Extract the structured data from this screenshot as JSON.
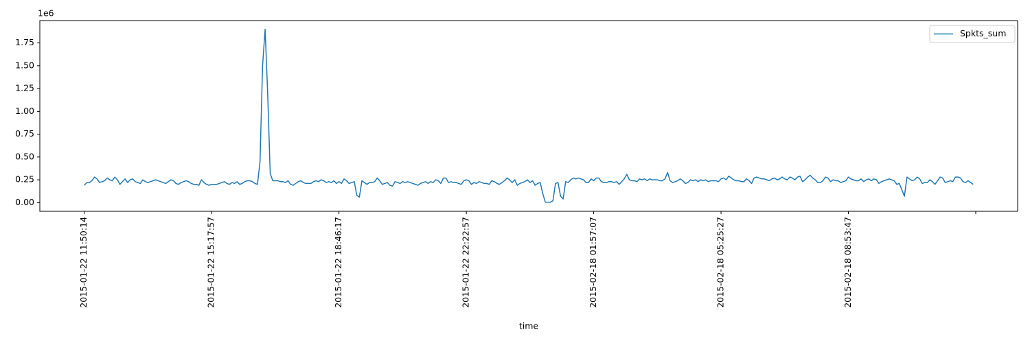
{
  "chart_data": {
    "type": "line",
    "xlabel": "time",
    "y_offset_label": "1e6",
    "legend": "upper right",
    "xlim": [
      -17.45,
      366.45
    ],
    "ylim": [
      -0.095,
      1.995
    ],
    "xticks": [
      {
        "value": 0,
        "label": "2015-01-22 11:50:14"
      },
      {
        "value": 50,
        "label": "2015-01-22 15:17:57"
      },
      {
        "value": 100,
        "label": "2015-01-22 18:46:17"
      },
      {
        "value": 150,
        "label": "2015-01-22 22:22:57"
      },
      {
        "value": 200,
        "label": "2015-02-18 01:57:07"
      },
      {
        "value": 250,
        "label": "2015-02-18 05:25:27"
      },
      {
        "value": 300,
        "label": "2015-02-18 08:53:47"
      },
      {
        "value": 350,
        "label": null
      }
    ],
    "yticks": [
      {
        "value": 0,
        "label": "0.00"
      },
      {
        "value": 0.25,
        "label": "0.25"
      },
      {
        "value": 0.5,
        "label": "0.50"
      },
      {
        "value": 0.75,
        "label": "0.75"
      },
      {
        "value": 1,
        "label": "1.00"
      },
      {
        "value": 1.25,
        "label": "1.25"
      },
      {
        "value": 1.5,
        "label": "1.50"
      },
      {
        "value": 1.75,
        "label": "1.75"
      }
    ],
    "series": [
      {
        "name": "Spkts_sum",
        "color": "#1f77b4",
        "values": [
          0.19,
          0.22,
          0.22,
          0.24,
          0.28,
          0.26,
          0.22,
          0.23,
          0.24,
          0.27,
          0.25,
          0.24,
          0.28,
          0.25,
          0.2,
          0.23,
          0.26,
          0.22,
          0.25,
          0.26,
          0.23,
          0.22,
          0.21,
          0.25,
          0.23,
          0.22,
          0.23,
          0.24,
          0.25,
          0.24,
          0.23,
          0.22,
          0.21,
          0.23,
          0.25,
          0.24,
          0.21,
          0.2,
          0.22,
          0.23,
          0.24,
          0.23,
          0.21,
          0.2,
          0.2,
          0.19,
          0.25,
          0.22,
          0.2,
          0.19,
          0.2,
          0.2,
          0.2,
          0.21,
          0.22,
          0.23,
          0.21,
          0.2,
          0.22,
          0.21,
          0.23,
          0.2,
          0.21,
          0.23,
          0.24,
          0.24,
          0.23,
          0.21,
          0.2,
          0.45,
          1.5,
          1.9,
          1.2,
          0.32,
          0.24,
          0.24,
          0.24,
          0.23,
          0.23,
          0.22,
          0.24,
          0.2,
          0.19,
          0.21,
          0.23,
          0.24,
          0.22,
          0.21,
          0.21,
          0.21,
          0.23,
          0.24,
          0.23,
          0.25,
          0.24,
          0.22,
          0.23,
          0.22,
          0.24,
          0.21,
          0.23,
          0.21,
          0.26,
          0.24,
          0.21,
          0.22,
          0.23,
          0.08,
          0.06,
          0.24,
          0.22,
          0.2,
          0.22,
          0.22,
          0.23,
          0.27,
          0.24,
          0.2,
          0.21,
          0.22,
          0.19,
          0.18,
          0.23,
          0.22,
          0.21,
          0.23,
          0.22,
          0.23,
          0.22,
          0.21,
          0.2,
          0.19,
          0.21,
          0.22,
          0.23,
          0.21,
          0.23,
          0.22,
          0.25,
          0.24,
          0.21,
          0.27,
          0.27,
          0.22,
          0.23,
          0.22,
          0.22,
          0.21,
          0.2,
          0.24,
          0.25,
          0.24,
          0.2,
          0.22,
          0.21,
          0.23,
          0.22,
          0.21,
          0.21,
          0.2,
          0.24,
          0.23,
          0.21,
          0.2,
          0.22,
          0.24,
          0.27,
          0.25,
          0.22,
          0.25,
          0.19,
          0.21,
          0.22,
          0.23,
          0.25,
          0.22,
          0.24,
          0.19,
          0.21,
          0.22,
          0.1,
          0.005,
          0.005,
          0.005,
          0.02,
          0.21,
          0.22,
          0.07,
          0.04,
          0.23,
          0.22,
          0.25,
          0.27,
          0.26,
          0.27,
          0.26,
          0.25,
          0.22,
          0.22,
          0.26,
          0.24,
          0.27,
          0.27,
          0.23,
          0.22,
          0.22,
          0.23,
          0.23,
          0.22,
          0.23,
          0.2,
          0.23,
          0.26,
          0.31,
          0.25,
          0.24,
          0.24,
          0.23,
          0.26,
          0.25,
          0.26,
          0.24,
          0.26,
          0.25,
          0.25,
          0.25,
          0.24,
          0.24,
          0.26,
          0.33,
          0.24,
          0.22,
          0.23,
          0.24,
          0.26,
          0.24,
          0.21,
          0.22,
          0.25,
          0.24,
          0.25,
          0.23,
          0.25,
          0.24,
          0.25,
          0.23,
          0.24,
          0.24,
          0.24,
          0.23,
          0.26,
          0.27,
          0.25,
          0.29,
          0.27,
          0.25,
          0.24,
          0.24,
          0.23,
          0.23,
          0.26,
          0.24,
          0.21,
          0.27,
          0.28,
          0.27,
          0.26,
          0.26,
          0.25,
          0.24,
          0.26,
          0.27,
          0.25,
          0.26,
          0.28,
          0.26,
          0.25,
          0.28,
          0.27,
          0.25,
          0.28,
          0.29,
          0.23,
          0.25,
          0.28,
          0.3,
          0.27,
          0.25,
          0.22,
          0.22,
          0.24,
          0.28,
          0.27,
          0.23,
          0.25,
          0.24,
          0.24,
          0.22,
          0.23,
          0.24,
          0.28,
          0.26,
          0.25,
          0.24,
          0.24,
          0.26,
          0.23,
          0.25,
          0.26,
          0.24,
          0.26,
          0.25,
          0.21,
          0.23,
          0.24,
          0.25,
          0.26,
          0.25,
          0.24,
          0.2,
          0.21,
          0.14,
          0.07,
          0.28,
          0.26,
          0.24,
          0.25,
          0.28,
          0.26,
          0.21,
          0.22,
          0.22,
          0.25,
          0.23,
          0.2,
          0.24,
          0.28,
          0.27,
          0.22,
          0.23,
          0.24,
          0.23,
          0.28,
          0.28,
          0.27,
          0.23,
          0.22,
          0.24,
          0.22,
          0.2
        ]
      }
    ]
  }
}
